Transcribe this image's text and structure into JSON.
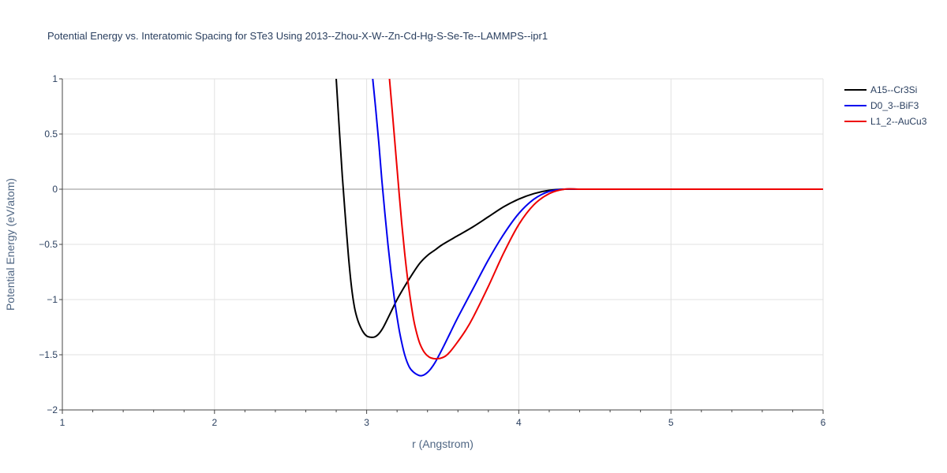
{
  "chart_data": {
    "type": "line",
    "title": "Potential Energy vs. Interatomic Spacing for STe3 Using 2013--Zhou-X-W--Zn-Cd-Hg-S-Se-Te--LAMMPS--ipr1",
    "xlabel": "r (Angstrom)",
    "ylabel": "Potential Energy (eV/atom)",
    "xlim": [
      1,
      6
    ],
    "ylim": [
      -2,
      1
    ],
    "xticks": [
      "1",
      "2",
      "3",
      "4",
      "5",
      "6"
    ],
    "yticks": [
      "−2",
      "−1.5",
      "−1",
      "−0.5",
      "0",
      "0.5",
      "1"
    ],
    "grid": true,
    "legend_position": "top-right",
    "series": [
      {
        "name": "A15--Cr3Si",
        "color": "#000000",
        "x": [
          2.8,
          2.82,
          2.84,
          2.86,
          2.88,
          2.9,
          2.92,
          2.94,
          2.96,
          2.98,
          3.0,
          3.02,
          3.05,
          3.08,
          3.11,
          3.15,
          3.2,
          3.25,
          3.3,
          3.35,
          3.4,
          3.45,
          3.5,
          3.6,
          3.7,
          3.8,
          3.9,
          4.0,
          4.1,
          4.2,
          4.3,
          4.4,
          4.5,
          5.0,
          5.5,
          6.0
        ],
        "y": [
          1.0,
          0.55,
          0.12,
          -0.25,
          -0.6,
          -0.88,
          -1.07,
          -1.18,
          -1.25,
          -1.3,
          -1.33,
          -1.34,
          -1.34,
          -1.31,
          -1.25,
          -1.14,
          -1.0,
          -0.88,
          -0.77,
          -0.67,
          -0.6,
          -0.55,
          -0.5,
          -0.42,
          -0.34,
          -0.25,
          -0.16,
          -0.09,
          -0.04,
          -0.01,
          0.0,
          0.0,
          0.0,
          0.0,
          0.0,
          0.0
        ]
      },
      {
        "name": "D0_3--BiF3",
        "color": "#0000ee",
        "x": [
          3.04,
          3.06,
          3.08,
          3.1,
          3.12,
          3.14,
          3.16,
          3.18,
          3.2,
          3.22,
          3.25,
          3.28,
          3.31,
          3.34,
          3.36,
          3.38,
          3.4,
          3.42,
          3.45,
          3.5,
          3.55,
          3.6,
          3.7,
          3.8,
          3.9,
          4.0,
          4.1,
          4.2,
          4.3,
          4.4,
          4.5,
          5.0,
          5.5,
          6.0
        ],
        "y": [
          1.0,
          0.72,
          0.42,
          0.08,
          -0.22,
          -0.5,
          -0.75,
          -0.97,
          -1.16,
          -1.32,
          -1.5,
          -1.61,
          -1.66,
          -1.685,
          -1.69,
          -1.68,
          -1.66,
          -1.63,
          -1.57,
          -1.44,
          -1.3,
          -1.16,
          -0.9,
          -0.64,
          -0.41,
          -0.22,
          -0.09,
          -0.02,
          0.0,
          0.0,
          0.0,
          0.0,
          0.0,
          0.0
        ]
      },
      {
        "name": "L1_2--AuCu3",
        "color": "#ee0000",
        "x": [
          3.15,
          3.17,
          3.19,
          3.21,
          3.23,
          3.25,
          3.27,
          3.29,
          3.31,
          3.33,
          3.35,
          3.38,
          3.41,
          3.44,
          3.47,
          3.49,
          3.52,
          3.55,
          3.6,
          3.65,
          3.7,
          3.8,
          3.9,
          4.0,
          4.1,
          4.2,
          4.3,
          4.4,
          4.5,
          5.0,
          5.5,
          6.0
        ],
        "y": [
          1.0,
          0.68,
          0.35,
          0.02,
          -0.3,
          -0.58,
          -0.82,
          -1.02,
          -1.19,
          -1.31,
          -1.4,
          -1.48,
          -1.52,
          -1.535,
          -1.535,
          -1.53,
          -1.51,
          -1.47,
          -1.38,
          -1.28,
          -1.16,
          -0.88,
          -0.58,
          -0.32,
          -0.14,
          -0.04,
          0.0,
          0.0,
          0.0,
          0.0,
          0.0,
          0.0
        ]
      }
    ]
  }
}
